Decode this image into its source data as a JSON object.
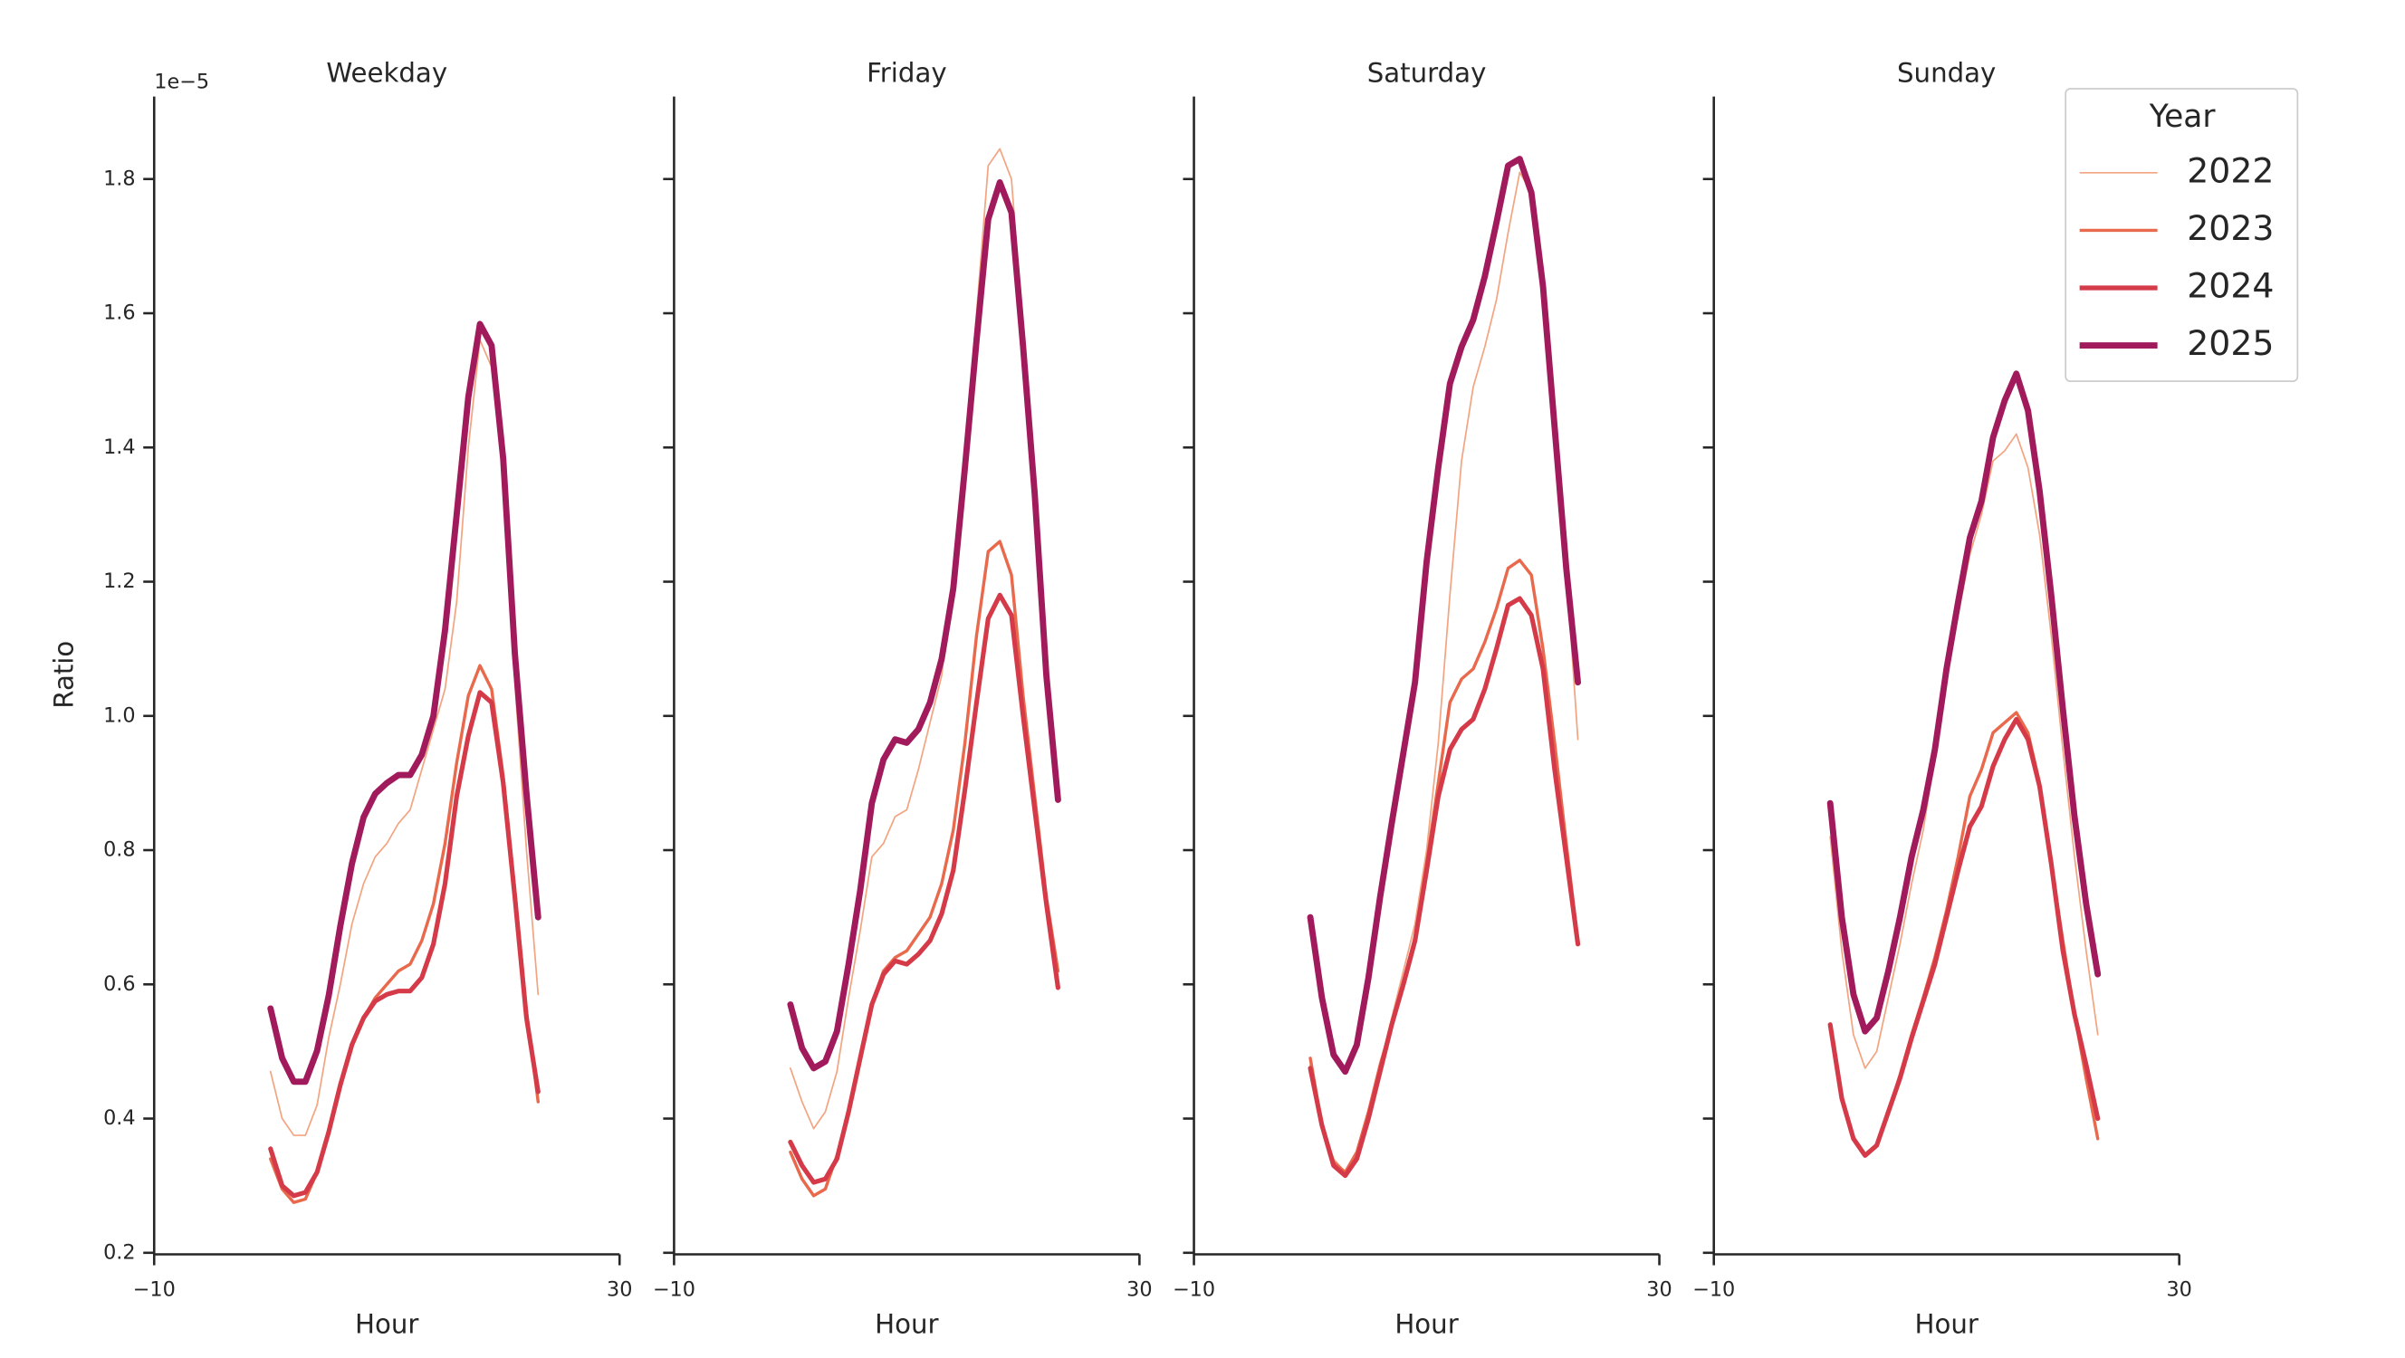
{
  "chart_data": [
    {
      "type": "line",
      "title": "Weekday",
      "xlabel": "Hour",
      "ylabel": "Ratio",
      "offset_text": "1e−5",
      "x": [
        0,
        1,
        2,
        3,
        4,
        5,
        6,
        7,
        8,
        9,
        10,
        11,
        12,
        13,
        14,
        15,
        16,
        17,
        18,
        19,
        20,
        21,
        22,
        23
      ],
      "xlim": [
        -10,
        30
      ],
      "xticks": [
        {
          "value": -10,
          "label": "−10"
        },
        30
      ],
      "ylim": [
        0.2,
        1.923
      ],
      "yticks": [
        0.2,
        0.4,
        0.6,
        0.8,
        {
          "value": 1,
          "label": "1.0"
        },
        1.2,
        1.4,
        1.6,
        1.8
      ],
      "series": [
        {
          "name": "2022",
          "color": "#f3a481",
          "linewidth": 1,
          "values": [
            0.47,
            0.4,
            0.375,
            0.375,
            0.42,
            0.52,
            0.6,
            0.69,
            0.75,
            0.79,
            0.81,
            0.84,
            0.86,
            0.92,
            0.98,
            1.04,
            1.17,
            1.4,
            1.56,
            1.52,
            1.36,
            1.05,
            0.8,
            0.585
          ]
        },
        {
          "name": "2023",
          "color": "#e9694d",
          "linewidth": 2,
          "values": [
            0.34,
            0.295,
            0.275,
            0.28,
            0.32,
            0.38,
            0.45,
            0.51,
            0.55,
            0.58,
            0.6,
            0.62,
            0.63,
            0.665,
            0.72,
            0.81,
            0.93,
            1.03,
            1.075,
            1.04,
            0.91,
            0.74,
            0.56,
            0.425
          ]
        },
        {
          "name": "2024",
          "color": "#d53a48",
          "linewidth": 3,
          "values": [
            0.355,
            0.3,
            0.285,
            0.29,
            0.32,
            0.38,
            0.45,
            0.51,
            0.55,
            0.575,
            0.585,
            0.59,
            0.59,
            0.61,
            0.66,
            0.75,
            0.88,
            0.97,
            1.035,
            1.02,
            0.9,
            0.73,
            0.55,
            0.44
          ]
        },
        {
          "name": "2025",
          "color": "#a11a5b",
          "linewidth": 4,
          "values": [
            0.564,
            0.49,
            0.455,
            0.455,
            0.501,
            0.583,
            0.687,
            0.78,
            0.849,
            0.884,
            0.9,
            0.912,
            0.912,
            0.942,
            1.0,
            1.128,
            1.3,
            1.475,
            1.584,
            1.552,
            1.383,
            1.093,
            0.884,
            0.7
          ]
        }
      ]
    },
    {
      "type": "line",
      "title": "Friday",
      "xlabel": "Hour",
      "x": [
        0,
        1,
        2,
        3,
        4,
        5,
        6,
        7,
        8,
        9,
        10,
        11,
        12,
        13,
        14,
        15,
        16,
        17,
        18,
        19,
        20,
        21,
        22,
        23
      ],
      "xlim": [
        -10,
        30
      ],
      "xticks": [
        {
          "value": -10,
          "label": "−10"
        },
        30
      ],
      "ylim": [
        0.2,
        1.923
      ],
      "series": [
        {
          "name": "2022",
          "color": "#f3a481",
          "linewidth": 1,
          "values": [
            0.475,
            0.425,
            0.385,
            0.41,
            0.47,
            0.58,
            0.68,
            0.79,
            0.81,
            0.85,
            0.86,
            0.92,
            0.99,
            1.06,
            1.2,
            1.4,
            1.6,
            1.82,
            1.845,
            1.8,
            1.57,
            1.36,
            1.06,
            0.88
          ]
        },
        {
          "name": "2023",
          "color": "#e9694d",
          "linewidth": 2,
          "values": [
            0.35,
            0.31,
            0.285,
            0.295,
            0.345,
            0.41,
            0.49,
            0.57,
            0.62,
            0.64,
            0.65,
            0.675,
            0.7,
            0.75,
            0.83,
            0.96,
            1.12,
            1.245,
            1.26,
            1.21,
            1.03,
            0.88,
            0.73,
            0.62
          ]
        },
        {
          "name": "2024",
          "color": "#d53a48",
          "linewidth": 3,
          "values": [
            0.365,
            0.33,
            0.305,
            0.31,
            0.34,
            0.41,
            0.49,
            0.57,
            0.615,
            0.635,
            0.63,
            0.645,
            0.665,
            0.705,
            0.77,
            0.89,
            1.02,
            1.145,
            1.18,
            1.15,
            1.0,
            0.86,
            0.72,
            0.595
          ]
        },
        {
          "name": "2025",
          "color": "#a11a5b",
          "linewidth": 4,
          "values": [
            0.57,
            0.505,
            0.475,
            0.485,
            0.53,
            0.63,
            0.74,
            0.87,
            0.935,
            0.965,
            0.96,
            0.98,
            1.02,
            1.085,
            1.19,
            1.37,
            1.56,
            1.74,
            1.795,
            1.75,
            1.55,
            1.33,
            1.06,
            0.875
          ]
        }
      ]
    },
    {
      "type": "line",
      "title": "Saturday",
      "xlabel": "Hour",
      "x": [
        0,
        1,
        2,
        3,
        4,
        5,
        6,
        7,
        8,
        9,
        10,
        11,
        12,
        13,
        14,
        15,
        16,
        17,
        18,
        19,
        20,
        21,
        22,
        23
      ],
      "xlim": [
        -10,
        30
      ],
      "xticks": [
        {
          "value": -10,
          "label": "−10"
        },
        30
      ],
      "ylim": [
        0.2,
        1.923
      ],
      "series": [
        {
          "name": "2022",
          "color": "#f3a481",
          "linewidth": 1,
          "values": [
            0.48,
            0.39,
            0.34,
            0.32,
            0.35,
            0.41,
            0.48,
            0.55,
            0.62,
            0.69,
            0.8,
            0.96,
            1.18,
            1.38,
            1.49,
            1.55,
            1.62,
            1.72,
            1.81,
            1.78,
            1.64,
            1.44,
            1.22,
            0.965
          ]
        },
        {
          "name": "2023",
          "color": "#e9694d",
          "linewidth": 2,
          "values": [
            0.49,
            0.39,
            0.335,
            0.32,
            0.35,
            0.41,
            0.48,
            0.54,
            0.605,
            0.67,
            0.78,
            0.9,
            1.02,
            1.055,
            1.07,
            1.11,
            1.16,
            1.22,
            1.232,
            1.21,
            1.1,
            0.96,
            0.81,
            0.665
          ]
        },
        {
          "name": "2024",
          "color": "#d53a48",
          "linewidth": 3,
          "values": [
            0.475,
            0.39,
            0.33,
            0.315,
            0.34,
            0.4,
            0.47,
            0.54,
            0.6,
            0.665,
            0.77,
            0.88,
            0.95,
            0.98,
            0.995,
            1.04,
            1.1,
            1.165,
            1.175,
            1.15,
            1.07,
            0.92,
            0.79,
            0.66
          ]
        },
        {
          "name": "2025",
          "color": "#a11a5b",
          "linewidth": 4,
          "values": [
            0.7,
            0.58,
            0.495,
            0.47,
            0.51,
            0.61,
            0.73,
            0.84,
            0.945,
            1.05,
            1.23,
            1.37,
            1.495,
            1.55,
            1.59,
            1.655,
            1.735,
            1.82,
            1.83,
            1.78,
            1.64,
            1.43,
            1.22,
            1.05
          ]
        }
      ]
    },
    {
      "type": "line",
      "title": "Sunday",
      "xlabel": "Hour",
      "x": [
        0,
        1,
        2,
        3,
        4,
        5,
        6,
        7,
        8,
        9,
        10,
        11,
        12,
        13,
        14,
        15,
        16,
        17,
        18,
        19,
        20,
        21,
        22,
        23
      ],
      "xlim": [
        -10,
        30
      ],
      "xticks": [
        {
          "value": -10,
          "label": "−10"
        },
        30
      ],
      "ylim": [
        0.2,
        1.923
      ],
      "series": [
        {
          "name": "2022",
          "color": "#f3a481",
          "linewidth": 1,
          "values": [
            0.82,
            0.65,
            0.525,
            0.475,
            0.5,
            0.58,
            0.66,
            0.75,
            0.83,
            0.94,
            1.06,
            1.15,
            1.24,
            1.3,
            1.38,
            1.395,
            1.42,
            1.37,
            1.27,
            1.12,
            0.95,
            0.79,
            0.65,
            0.525
          ]
        },
        {
          "name": "2023",
          "color": "#e9694d",
          "linewidth": 2,
          "values": [
            0.54,
            0.43,
            0.37,
            0.345,
            0.36,
            0.41,
            0.465,
            0.525,
            0.58,
            0.64,
            0.71,
            0.79,
            0.88,
            0.92,
            0.975,
            0.99,
            1.005,
            0.975,
            0.9,
            0.78,
            0.665,
            0.555,
            0.46,
            0.37
          ]
        },
        {
          "name": "2024",
          "color": "#d53a48",
          "linewidth": 3,
          "values": [
            0.54,
            0.43,
            0.37,
            0.345,
            0.36,
            0.41,
            0.46,
            0.52,
            0.575,
            0.63,
            0.7,
            0.77,
            0.835,
            0.865,
            0.925,
            0.965,
            0.995,
            0.965,
            0.895,
            0.78,
            0.65,
            0.555,
            0.48,
            0.4
          ]
        },
        {
          "name": "2025",
          "color": "#a11a5b",
          "linewidth": 4,
          "values": [
            0.87,
            0.7,
            0.585,
            0.53,
            0.55,
            0.62,
            0.7,
            0.79,
            0.86,
            0.95,
            1.07,
            1.17,
            1.265,
            1.32,
            1.415,
            1.47,
            1.51,
            1.455,
            1.335,
            1.18,
            1.01,
            0.85,
            0.72,
            0.615
          ]
        }
      ]
    }
  ],
  "legend": {
    "title": "Year",
    "loc": "upper right"
  }
}
